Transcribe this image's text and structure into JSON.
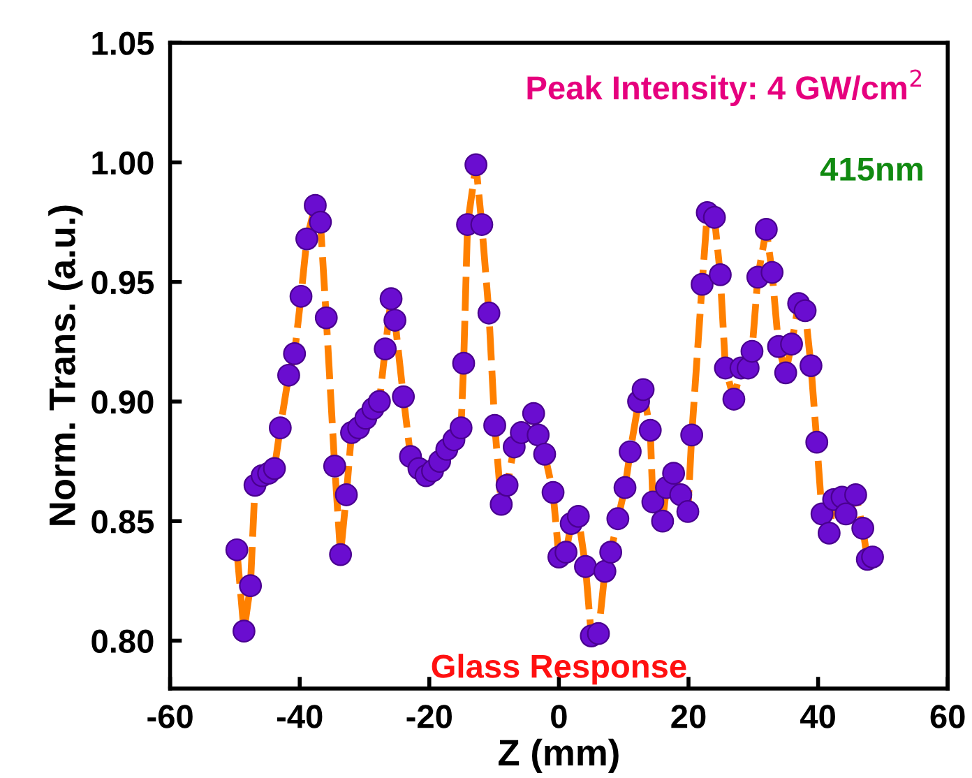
{
  "chart_data": {
    "type": "line",
    "xlabel": "Z (mm)",
    "ylabel": "Norm. Trans. (a.u.)",
    "xlim": [
      -60,
      60
    ],
    "xticks": [
      -60,
      -40,
      -20,
      0,
      20,
      40,
      60
    ],
    "ylim": [
      0.78,
      1.05
    ],
    "yticks": [
      {
        "value": 0.8,
        "label": "0.80"
      },
      {
        "value": 0.85,
        "label": "0.85"
      },
      {
        "value": 0.9,
        "label": "0.90"
      },
      {
        "value": 0.95,
        "label": "0.95"
      },
      {
        "value": 1.0,
        "label": "1.00"
      },
      {
        "value": 1.05,
        "label": "1.05"
      }
    ],
    "grid": false,
    "legend": false,
    "marker": "circle",
    "line_style": "dashed",
    "annotations": [
      "Peak Intensity: 4 GW/cm$^{2}$",
      "415nm",
      "Glass Response"
    ],
    "series": [
      {
        "color": "#ff8000",
        "x": [
          -49.7,
          -48.6,
          -47.6,
          -46.9,
          -45.8,
          -44.8,
          -43.9,
          -43.0,
          -41.7,
          -40.8,
          -39.8,
          -38.9,
          -37.6,
          -36.8,
          -35.9,
          -34.6,
          -33.7,
          -32.8,
          -32.0,
          -30.9,
          -29.8,
          -28.7,
          -27.7,
          -26.8,
          -25.9,
          -25.3,
          -24.0,
          -22.9,
          -21.6,
          -20.5,
          -19.5,
          -18.4,
          -17.3,
          -16.2,
          -15.1,
          -14.7,
          -14.1,
          -12.8,
          -11.9,
          -10.8,
          -9.9,
          -8.9,
          -8.0,
          -6.9,
          -5.8,
          -3.9,
          -3.2,
          -2.2,
          -0.9,
          0.0,
          1.1,
          1.9,
          3.0,
          4.1,
          5.0,
          6.1,
          7.1,
          8.0,
          9.1,
          10.2,
          11.0,
          12.3,
          13.0,
          14.1,
          14.5,
          16.0,
          16.6,
          17.7,
          18.8,
          19.9,
          20.5,
          22.1,
          22.9,
          24.0,
          24.9,
          25.7,
          27.0,
          28.1,
          29.2,
          29.8,
          30.7,
          32.0,
          32.9,
          33.9,
          35.0,
          35.9,
          37.0,
          38.0,
          38.9,
          39.8,
          40.6,
          41.7,
          42.4,
          43.7,
          44.3,
          45.8,
          46.9,
          47.6,
          48.4
        ],
        "values": [
          0.838,
          0.804,
          0.823,
          0.865,
          0.869,
          0.87,
          0.872,
          0.889,
          0.911,
          0.92,
          0.944,
          0.968,
          0.982,
          0.975,
          0.935,
          0.873,
          0.836,
          0.861,
          0.887,
          0.889,
          0.893,
          0.897,
          0.9,
          0.922,
          0.943,
          0.934,
          0.902,
          0.877,
          0.872,
          0.869,
          0.871,
          0.875,
          0.88,
          0.884,
          0.889,
          0.916,
          0.974,
          0.999,
          0.974,
          0.937,
          0.89,
          0.857,
          0.865,
          0.881,
          0.887,
          0.895,
          0.886,
          0.878,
          0.862,
          0.835,
          0.837,
          0.849,
          0.852,
          0.831,
          0.802,
          0.803,
          0.829,
          0.837,
          0.851,
          0.864,
          0.879,
          0.9,
          0.905,
          0.888,
          0.858,
          0.85,
          0.864,
          0.87,
          0.861,
          0.854,
          0.886,
          0.949,
          0.979,
          0.977,
          0.953,
          0.914,
          0.901,
          0.914,
          0.914,
          0.921,
          0.952,
          0.972,
          0.954,
          0.923,
          0.912,
          0.924,
          0.941,
          0.938,
          0.915,
          0.883,
          0.853,
          0.845,
          0.859,
          0.86,
          0.853,
          0.861,
          0.847,
          0.834,
          0.835
        ]
      }
    ]
  }
}
